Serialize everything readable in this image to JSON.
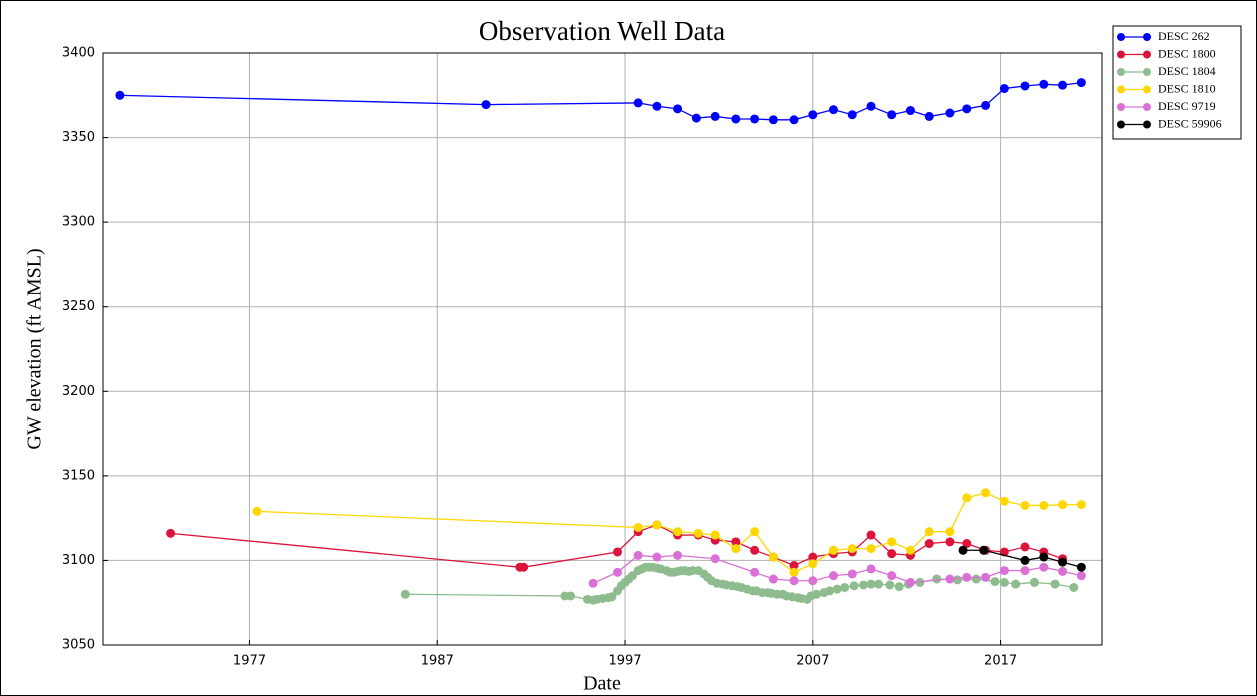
{
  "chart_data": {
    "type": "line",
    "title": "Observation Well Data",
    "x_label": "Date",
    "y_label": "GW elevation (ft AMSL)",
    "xlim": [
      1969.2,
      2022.4
    ],
    "xticks": [
      1977,
      1987,
      1997,
      2007,
      2017
    ],
    "ylim": [
      3050,
      3400
    ],
    "yticks": [
      3050,
      3100,
      3150,
      3200,
      3250,
      3300,
      3350,
      3400
    ],
    "grid": true,
    "legend": "outside upper right",
    "series": [
      {
        "name": "DESC 262",
        "color": "#0000ff",
        "x": [
          1970.1,
          1989.6,
          1997.7,
          1998.7,
          1999.8,
          2000.8,
          2001.8,
          2002.9,
          2003.9,
          2004.9,
          2006.0,
          2007.0,
          2008.1,
          2009.1,
          2010.1,
          2011.2,
          2012.2,
          2013.2,
          2014.3,
          2015.2,
          2016.2,
          2017.2,
          2018.3,
          2019.3,
          2020.3,
          2021.3
        ],
        "values": [
          3375,
          3369.5,
          3370.5,
          3368.5,
          3367,
          3361.5,
          3362.5,
          3361,
          3361,
          3360.5,
          3360.5,
          3363.5,
          3366.5,
          3363.5,
          3368.5,
          3363.5,
          3366,
          3362.5,
          3364.5,
          3367,
          3369,
          3379,
          3380.5,
          3381.5,
          3381,
          3382.5
        ]
      },
      {
        "name": "DESC 1800",
        "color": "#dc143c",
        "x": [
          1972.8,
          1991.4,
          1991.6,
          1996.6,
          1997.7,
          1998.7,
          1999.8,
          2000.9,
          2001.8,
          2002.9,
          2003.9,
          2004.9,
          2006.0,
          2007.0,
          2008.1,
          2009.1,
          2010.1,
          2011.2,
          2012.2,
          2013.2,
          2014.3,
          2015.2,
          2016.2,
          2017.2,
          2018.3,
          2019.3,
          2020.3
        ],
        "values": [
          3116,
          3096,
          3096,
          3105,
          3117,
          3121,
          3115,
          3115,
          3112,
          3111,
          3106,
          3102,
          3097,
          3102,
          3104,
          3105,
          3115,
          3104,
          3103,
          3110,
          3111,
          3110,
          3106,
          3105,
          3108,
          3105,
          3101
        ]
      },
      {
        "name": "DESC 1804",
        "color": "#8fbc8f",
        "x": [
          1985.3,
          1993.8,
          1994.1,
          1995.0,
          1995.3,
          1995.5,
          1995.8,
          1996.1,
          1996.3,
          1996.6,
          1996.8,
          1997.0,
          1997.2,
          1997.4,
          1997.7,
          1997.9,
          1998.1,
          1998.3,
          1998.5,
          1998.7,
          1998.9,
          1999.2,
          1999.4,
          1999.6,
          1999.8,
          2000.0,
          2000.2,
          2000.4,
          2000.6,
          2000.9,
          2001.2,
          2001.4,
          2001.6,
          2001.9,
          2002.2,
          2002.4,
          2002.7,
          2003.0,
          2003.2,
          2003.5,
          2003.8,
          2004.0,
          2004.3,
          2004.6,
          2004.8,
          2005.1,
          2005.4,
          2005.6,
          2005.9,
          2006.2,
          2006.4,
          2006.7,
          2006.9,
          2007.2,
          2007.6,
          2007.9,
          2008.3,
          2008.7,
          2009.2,
          2009.7,
          2010.1,
          2010.5,
          2011.1,
          2011.6,
          2012.1,
          2012.7,
          2013.6,
          2014.7,
          2015.7,
          2016.7,
          2017.2,
          2017.8,
          2018.8,
          2019.9,
          2020.9
        ],
        "values": [
          3080,
          3079,
          3079,
          3077,
          3076.5,
          3077,
          3077.5,
          3078,
          3078.5,
          3082,
          3085,
          3087,
          3089,
          3091,
          3094,
          3095,
          3096,
          3096,
          3096,
          3095.5,
          3095,
          3094,
          3093,
          3093,
          3093.5,
          3094,
          3094,
          3093.5,
          3094,
          3094,
          3092,
          3090,
          3088,
          3086.5,
          3086,
          3085.5,
          3085,
          3084.5,
          3084,
          3083,
          3082,
          3082,
          3081,
          3081,
          3080.5,
          3080,
          3080,
          3079,
          3078.5,
          3078,
          3077.5,
          3077,
          3079,
          3080,
          3081,
          3082,
          3083,
          3084,
          3085,
          3085.5,
          3086,
          3086,
          3085.5,
          3084.5,
          3086,
          3087,
          3089,
          3088.5,
          3089,
          3087.5,
          3087,
          3086,
          3087,
          3086,
          3084
        ]
      },
      {
        "name": "DESC 1810",
        "color": "#ffd700",
        "x": [
          1977.4,
          1997.7,
          1998.7,
          1999.8,
          2000.9,
          2001.8,
          2002.9,
          2003.9,
          2004.9,
          2006.0,
          2007.0,
          2008.1,
          2009.1,
          2010.1,
          2011.2,
          2012.2,
          2013.2,
          2014.3,
          2015.2,
          2016.2,
          2017.2,
          2018.3,
          2019.3,
          2020.3,
          2021.3
        ],
        "values": [
          3129,
          3119.5,
          3121,
          3117,
          3116,
          3115,
          3107,
          3117,
          3102,
          3093,
          3098,
          3106,
          3107,
          3107,
          3111,
          3106,
          3117,
          3117,
          3137,
          3140,
          3135,
          3132.5,
          3132.5,
          3133,
          3133
        ]
      },
      {
        "name": "DESC 9719",
        "color": "#da70d6",
        "x": [
          1995.3,
          1996.6,
          1997.7,
          1998.7,
          1999.8,
          2001.8,
          2003.9,
          2004.9,
          2006.0,
          2007.0,
          2008.1,
          2009.1,
          2010.1,
          2011.2,
          2012.2,
          2014.3,
          2015.2,
          2016.2,
          2017.2,
          2018.3,
          2019.3,
          2020.3,
          2021.3
        ],
        "values": [
          3086.5,
          3093,
          3103,
          3102,
          3103,
          3101,
          3093,
          3089,
          3088,
          3088,
          3091,
          3092,
          3095,
          3091,
          3087,
          3089,
          3090,
          3090,
          3094,
          3094,
          3096,
          3093.5,
          3091
        ]
      },
      {
        "name": "DESC 59906",
        "color": "#000000",
        "x": [
          2015.0,
          2016.1,
          2018.3,
          2019.3,
          2020.3,
          2021.3
        ],
        "values": [
          3106,
          3106,
          3100,
          3102,
          3099,
          3096
        ]
      }
    ]
  }
}
